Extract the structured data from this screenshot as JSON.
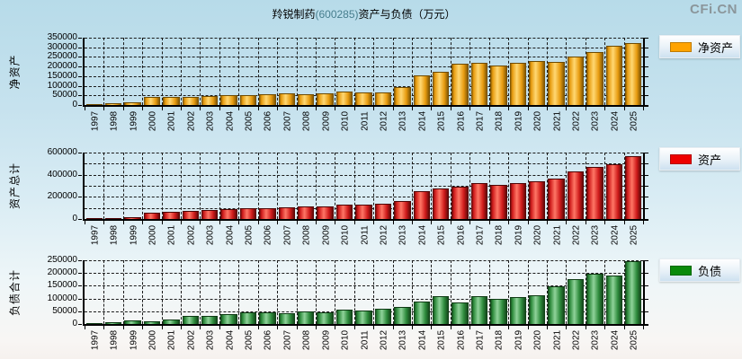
{
  "logo": "CFi.CN",
  "title": {
    "company": "羚锐制药",
    "code": "(600285)",
    "suffix": "资产与负债（万元）"
  },
  "chart_data": [
    {
      "type": "bar",
      "id": "net-assets",
      "ylabel": "净资产",
      "legend": "净资产",
      "legend_position": "right",
      "grid": true,
      "ylim": [
        0,
        350000
      ],
      "ytick_step": 50000,
      "divisions": 7,
      "label_every": 1,
      "color": "#FFA300",
      "gradient": {
        "dark": "#6e4a00",
        "mid": "#e89c10",
        "light": "#ffd873"
      },
      "categories": [
        "1997",
        "1998",
        "1999",
        "2000",
        "2001",
        "2002",
        "2003",
        "2004",
        "2005",
        "2006",
        "2007",
        "2008",
        "2009",
        "2010",
        "2011",
        "2012",
        "2013",
        "2014",
        "2015",
        "2016",
        "2017",
        "2018",
        "2019",
        "2020",
        "2021",
        "2022",
        "2023",
        "2024",
        "2025"
      ],
      "values": [
        6000,
        8000,
        15000,
        44000,
        42000,
        41000,
        47000,
        50000,
        52000,
        55000,
        59000,
        57000,
        61000,
        68000,
        66000,
        67000,
        95000,
        154000,
        171000,
        213000,
        220000,
        204000,
        218000,
        228000,
        223000,
        253000,
        275000,
        306000,
        324000
      ]
    },
    {
      "type": "bar",
      "id": "total-assets",
      "ylabel": "资产总计",
      "legend": "资产",
      "legend_position": "right",
      "grid": true,
      "ylim": [
        0,
        600000
      ],
      "ytick_step": 100000,
      "divisions": 6,
      "label_every": 2,
      "color": "#EE0000",
      "gradient": {
        "dark": "#4e0404",
        "mid": "#cf1b1b",
        "light": "#ff7766"
      },
      "categories": [
        "1997",
        "1998",
        "1999",
        "2000",
        "2001",
        "2002",
        "2003",
        "2004",
        "2005",
        "2006",
        "2007",
        "2008",
        "2009",
        "2010",
        "2011",
        "2012",
        "2013",
        "2014",
        "2015",
        "2016",
        "2017",
        "2018",
        "2019",
        "2020",
        "2021",
        "2022",
        "2023",
        "2024",
        "2025"
      ],
      "values": [
        9000,
        12000,
        20000,
        55000,
        66000,
        75000,
        85000,
        93000,
        95000,
        101000,
        103000,
        114000,
        112000,
        128000,
        127000,
        135000,
        163000,
        251000,
        277000,
        294000,
        326000,
        308000,
        324000,
        342000,
        368000,
        428000,
        467000,
        498000,
        570000
      ]
    },
    {
      "type": "bar",
      "id": "total-liabilities",
      "ylabel": "负债合计",
      "legend": "负债",
      "legend_position": "right",
      "grid": true,
      "ylim": [
        0,
        250000
      ],
      "ytick_step": 50000,
      "divisions": 5,
      "label_every": 1,
      "color": "#0A8A0A",
      "gradient": {
        "dark": "#0f3a14",
        "mid": "#2e8b3c",
        "light": "#90d39a"
      },
      "categories": [
        "1997",
        "1998",
        "1999",
        "2000",
        "2001",
        "2002",
        "2003",
        "2004",
        "2005",
        "2006",
        "2007",
        "2008",
        "2009",
        "2010",
        "2011",
        "2012",
        "2013",
        "2014",
        "2015",
        "2016",
        "2017",
        "2018",
        "2019",
        "2020",
        "2021",
        "2022",
        "2023",
        "2024",
        "2025"
      ],
      "values": [
        4000,
        8000,
        13000,
        12000,
        17000,
        31000,
        32000,
        38000,
        45000,
        46000,
        42000,
        50000,
        47000,
        55000,
        53000,
        60000,
        67000,
        89000,
        108000,
        85000,
        109000,
        100000,
        106000,
        111000,
        147000,
        176000,
        196000,
        191000,
        245000
      ]
    }
  ]
}
